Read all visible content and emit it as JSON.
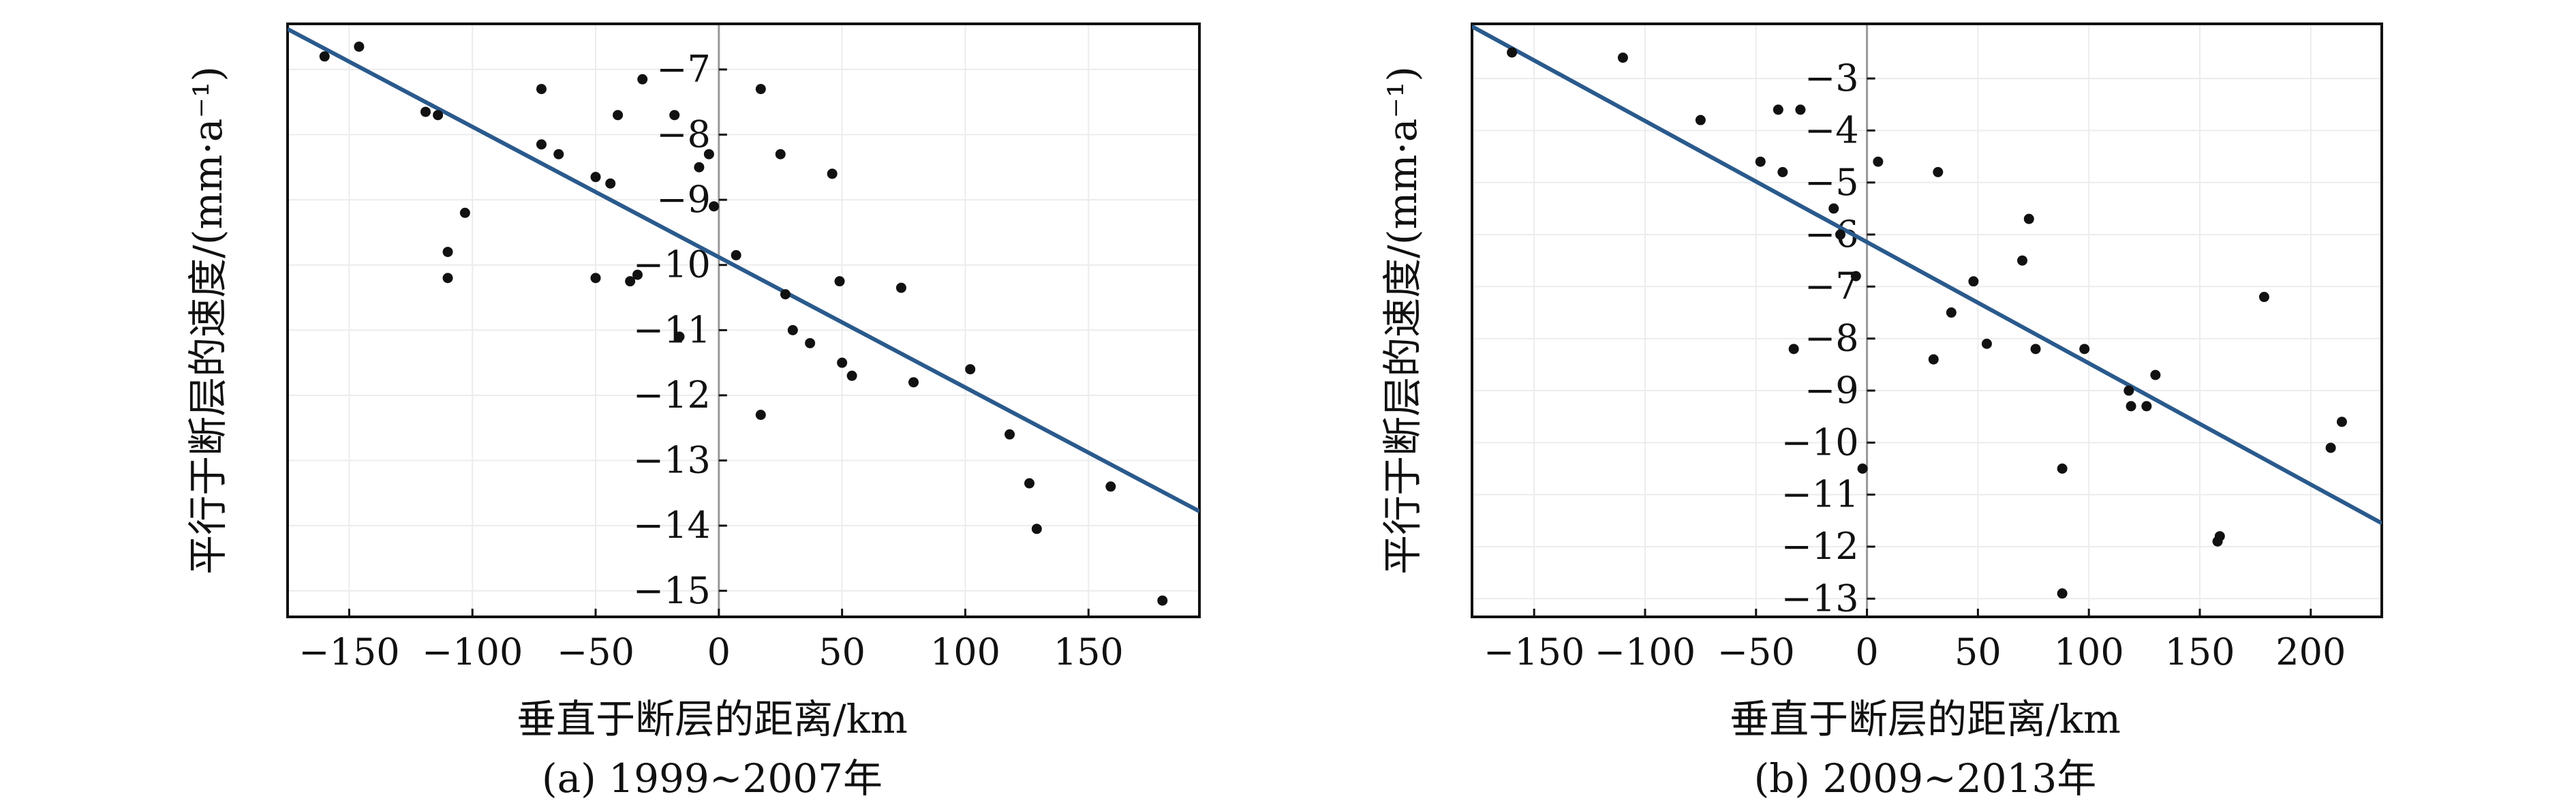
{
  "chart_data": [
    {
      "type": "scatter",
      "title": "",
      "caption": "(a) 1999~2007年",
      "xlabel": "垂直于断层的距离/km",
      "ylabel": "平行于断层的速度/(mm·a⁻¹)",
      "xlim": [
        -175,
        195
      ],
      "ylim": [
        -15.4,
        -6.3
      ],
      "xticks": [
        -150,
        -100,
        -50,
        0,
        50,
        100,
        150
      ],
      "yticks": [
        -15,
        -14,
        -13,
        -12,
        -11,
        -10,
        -9,
        -8,
        -7
      ],
      "grid": true,
      "legend": "none",
      "colors": {
        "points": "#111111",
        "fit_line": "#2a5a8c",
        "zero_line": "#999999"
      },
      "fit_line": {
        "x": [
          -175,
          195
        ],
        "y": [
          -6.38,
          -13.78
        ]
      },
      "points": [
        {
          "x": -160,
          "y": -6.8
        },
        {
          "x": -146,
          "y": -6.65
        },
        {
          "x": -119,
          "y": -7.65
        },
        {
          "x": -114,
          "y": -7.7
        },
        {
          "x": -110,
          "y": -9.8
        },
        {
          "x": -110,
          "y": -10.2
        },
        {
          "x": -103,
          "y": -9.2
        },
        {
          "x": -72,
          "y": -8.15
        },
        {
          "x": -72,
          "y": -7.3
        },
        {
          "x": -65,
          "y": -8.3
        },
        {
          "x": -50,
          "y": -8.65
        },
        {
          "x": -50,
          "y": -10.2
        },
        {
          "x": -44,
          "y": -8.75
        },
        {
          "x": -41,
          "y": -7.7
        },
        {
          "x": -36,
          "y": -10.25
        },
        {
          "x": -33,
          "y": -10.15
        },
        {
          "x": -31,
          "y": -7.15
        },
        {
          "x": -18,
          "y": -7.7
        },
        {
          "x": -16,
          "y": -11.1
        },
        {
          "x": -8,
          "y": -8.5
        },
        {
          "x": -4,
          "y": -8.3
        },
        {
          "x": -2,
          "y": -9.1
        },
        {
          "x": 7,
          "y": -9.85
        },
        {
          "x": 17,
          "y": -7.3
        },
        {
          "x": 17,
          "y": -12.3
        },
        {
          "x": 25,
          "y": -8.3
        },
        {
          "x": 27,
          "y": -10.45
        },
        {
          "x": 30,
          "y": -11.0
        },
        {
          "x": 37,
          "y": -11.2
        },
        {
          "x": 46,
          "y": -8.6
        },
        {
          "x": 49,
          "y": -10.25
        },
        {
          "x": 50,
          "y": -11.5
        },
        {
          "x": 54,
          "y": -11.7
        },
        {
          "x": 74,
          "y": -10.35
        },
        {
          "x": 79,
          "y": -11.8
        },
        {
          "x": 102,
          "y": -11.6
        },
        {
          "x": 118,
          "y": -12.6
        },
        {
          "x": 126,
          "y": -13.35
        },
        {
          "x": 129,
          "y": -14.05
        },
        {
          "x": 159,
          "y": -13.4
        },
        {
          "x": 180,
          "y": -15.15
        }
      ]
    },
    {
      "type": "scatter",
      "title": "",
      "caption": "(b) 2009~2013年",
      "xlabel": "垂直于断层的距离/km",
      "ylabel": "平行于断层的速度/(mm·a⁻¹)",
      "xlim": [
        -178,
        232
      ],
      "ylim": [
        -13.35,
        -1.95
      ],
      "xticks": [
        -150,
        -100,
        -50,
        0,
        50,
        100,
        150,
        200
      ],
      "yticks": [
        -13,
        -12,
        -11,
        -10,
        -9,
        -8,
        -7,
        -6,
        -5,
        -4,
        -3
      ],
      "grid": true,
      "legend": "none",
      "colors": {
        "points": "#111111",
        "fit_line": "#2a5a8c",
        "zero_line": "#999999"
      },
      "fit_line": {
        "x": [
          -178,
          232
        ],
        "y": [
          -2.0,
          -11.55
        ]
      },
      "points": [
        {
          "x": -160,
          "y": -2.5
        },
        {
          "x": -110,
          "y": -2.6
        },
        {
          "x": -75,
          "y": -3.8
        },
        {
          "x": -48,
          "y": -4.6
        },
        {
          "x": -40,
          "y": -3.6
        },
        {
          "x": -38,
          "y": -4.8
        },
        {
          "x": -30,
          "y": -3.6
        },
        {
          "x": -33,
          "y": -8.2
        },
        {
          "x": -15,
          "y": -5.5
        },
        {
          "x": -12,
          "y": -6.0
        },
        {
          "x": -5,
          "y": -6.8
        },
        {
          "x": -2,
          "y": -10.5
        },
        {
          "x": 5,
          "y": -4.6
        },
        {
          "x": 30,
          "y": -8.4
        },
        {
          "x": 32,
          "y": -4.8
        },
        {
          "x": 38,
          "y": -7.5
        },
        {
          "x": 48,
          "y": -6.9
        },
        {
          "x": 54,
          "y": -8.1
        },
        {
          "x": 70,
          "y": -6.5
        },
        {
          "x": 73,
          "y": -5.7
        },
        {
          "x": 76,
          "y": -8.2
        },
        {
          "x": 88,
          "y": -10.5
        },
        {
          "x": 88,
          "y": -12.9
        },
        {
          "x": 98,
          "y": -8.2
        },
        {
          "x": 118,
          "y": -9.0
        },
        {
          "x": 119,
          "y": -9.3
        },
        {
          "x": 126,
          "y": -9.3
        },
        {
          "x": 130,
          "y": -8.7
        },
        {
          "x": 158,
          "y": -11.9
        },
        {
          "x": 159,
          "y": -11.8
        },
        {
          "x": 179,
          "y": -7.2
        },
        {
          "x": 209,
          "y": -10.1
        },
        {
          "x": 214,
          "y": -9.6
        }
      ]
    }
  ]
}
